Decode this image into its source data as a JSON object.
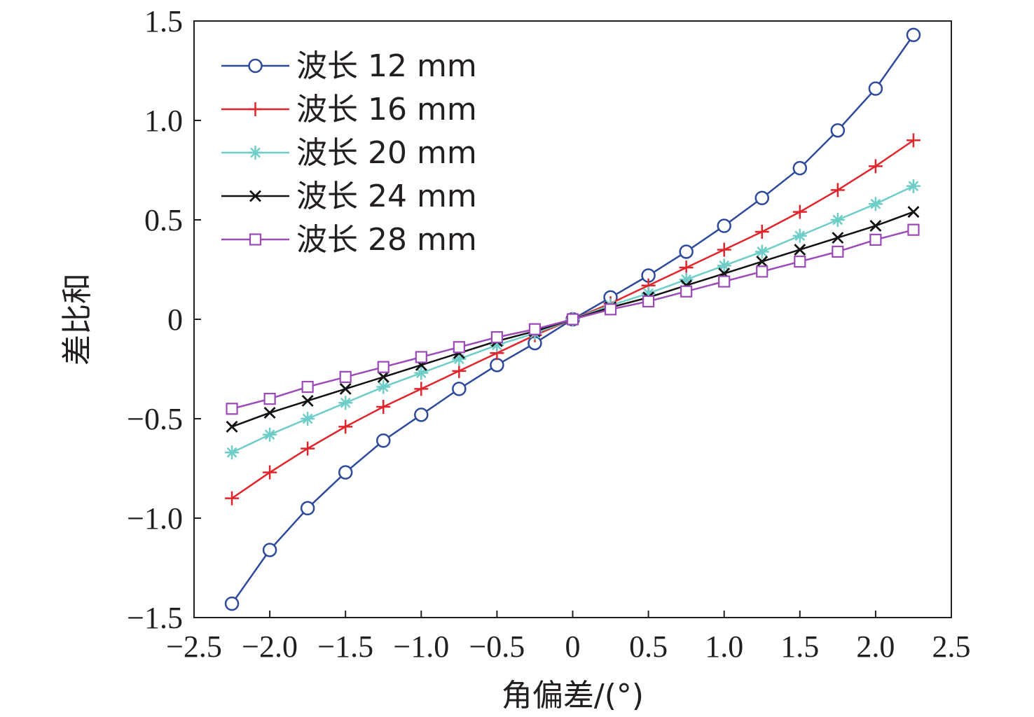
{
  "chart_data": {
    "type": "line",
    "xlabel": "角偏差/(°)",
    "ylabel": "差比和",
    "xlim": [
      -2.5,
      2.5
    ],
    "ylim": [
      -1.5,
      1.5
    ],
    "xticks": [
      -2.5,
      -2.0,
      -1.5,
      -1.0,
      -0.5,
      0,
      0.5,
      1.0,
      1.5,
      2.0,
      2.5
    ],
    "xtick_labels": [
      "−2.5",
      "−2.0",
      "−1.5",
      "−1.0",
      "−0.5",
      "0",
      "0.5",
      "1.0",
      "1.5",
      "2.0",
      "2.5"
    ],
    "yticks": [
      -1.5,
      -1.0,
      -0.5,
      0,
      0.5,
      1.0,
      1.5
    ],
    "ytick_labels": [
      "−1.5",
      "−1.0",
      "−0.5",
      "0",
      "0.5",
      "1.0",
      "1.5"
    ],
    "grid": false,
    "legend_position": "top-left",
    "x": [
      -2.25,
      -2.0,
      -1.75,
      -1.5,
      -1.25,
      -1.0,
      -0.75,
      -0.5,
      -0.25,
      0,
      0.25,
      0.5,
      0.75,
      1.0,
      1.25,
      1.5,
      1.75,
      2.0,
      2.25
    ],
    "series": [
      {
        "name": "波长 12 mm",
        "color": "#2e4a9b",
        "marker": "circle",
        "values": [
          -1.43,
          -1.16,
          -0.95,
          -0.77,
          -0.61,
          -0.48,
          -0.35,
          -0.23,
          -0.12,
          0,
          0.11,
          0.22,
          0.34,
          0.47,
          0.61,
          0.76,
          0.95,
          1.16,
          1.43
        ]
      },
      {
        "name": "波长 16 mm",
        "color": "#e0262c",
        "marker": "plus",
        "values": [
          -0.9,
          -0.77,
          -0.65,
          -0.54,
          -0.44,
          -0.35,
          -0.26,
          -0.17,
          -0.08,
          0,
          0.08,
          0.17,
          0.26,
          0.35,
          0.44,
          0.54,
          0.65,
          0.77,
          0.9
        ]
      },
      {
        "name": "波长 20 mm",
        "color": "#6fcdc8",
        "marker": "asterisk",
        "values": [
          -0.67,
          -0.58,
          -0.5,
          -0.42,
          -0.34,
          -0.27,
          -0.2,
          -0.13,
          -0.07,
          0,
          0.07,
          0.13,
          0.2,
          0.27,
          0.34,
          0.42,
          0.5,
          0.58,
          0.67
        ]
      },
      {
        "name": "波长 24 mm",
        "color": "#111111",
        "marker": "x",
        "values": [
          -0.54,
          -0.47,
          -0.41,
          -0.35,
          -0.29,
          -0.23,
          -0.17,
          -0.11,
          -0.06,
          0,
          0.06,
          0.11,
          0.17,
          0.23,
          0.29,
          0.35,
          0.41,
          0.47,
          0.54
        ]
      },
      {
        "name": "波长 28 mm",
        "color": "#9b4ab8",
        "marker": "square",
        "values": [
          -0.45,
          -0.4,
          -0.34,
          -0.29,
          -0.24,
          -0.19,
          -0.14,
          -0.09,
          -0.05,
          0,
          0.05,
          0.09,
          0.14,
          0.19,
          0.24,
          0.29,
          0.34,
          0.4,
          0.45
        ]
      }
    ]
  }
}
